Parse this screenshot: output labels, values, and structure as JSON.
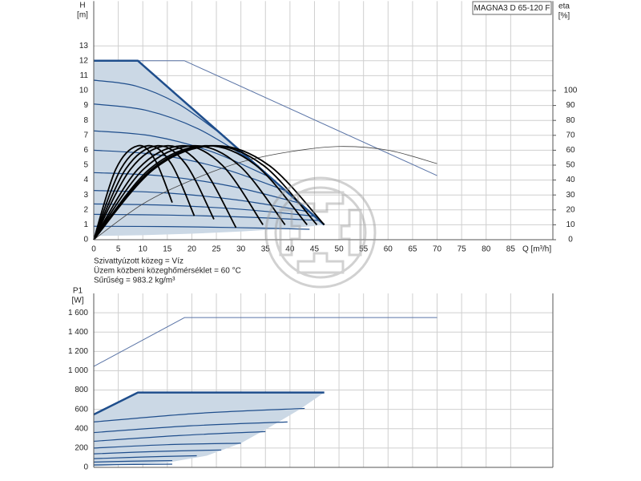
{
  "chart_data": [
    {
      "type": "line",
      "title": "MAGNA3 D 65-120 F",
      "ylabel": [
        "H",
        "[m]"
      ],
      "y2label": [
        "eta",
        "[%]"
      ],
      "xlabel": "Q [m³/h]",
      "annotations": [
        "Szivattyúzott közeg = Víz",
        "Üzem közbeni közeghőmérséklet = 60 °C",
        "Sűrűség = 983.2 kg/m³"
      ],
      "xlim": [
        0,
        93.6
      ],
      "xticks": [
        0,
        5,
        10,
        15,
        20,
        25,
        30,
        35,
        40,
        45,
        50,
        55,
        60,
        65,
        70,
        75,
        80,
        85
      ],
      "ylim": [
        0,
        16
      ],
      "yticks": [
        0,
        1,
        2,
        3,
        4,
        5,
        6,
        7,
        8,
        9,
        10,
        11,
        12,
        13
      ],
      "y2lim": [
        0,
        160
      ],
      "y2ticks": [
        0,
        10,
        20,
        30,
        40,
        50,
        60,
        70,
        80,
        90,
        100
      ],
      "grid": true,
      "series": [
        {
          "color": "#cbd8e5",
          "fill": true,
          "x": [
            0,
            9,
            47,
            40,
            30,
            20,
            10,
            0
          ],
          "values": [
            12,
            12,
            1.0,
            0.75,
            0.55,
            0.4,
            0.3,
            0.25
          ]
        },
        {
          "color": "#5a74a6",
          "width": 1,
          "x": [
            0,
            18.5,
            70
          ],
          "values": [
            12,
            12,
            4.3
          ]
        },
        {
          "color": "#1f4e8c",
          "width": 2.5,
          "x": [
            0,
            9,
            47
          ],
          "values": [
            12,
            12,
            1.0
          ]
        },
        {
          "color": "#1f4e8c",
          "width": 1.2,
          "smooth": true,
          "x": [
            0,
            8.67,
            17.33,
            26
          ],
          "values": [
            10.7,
            10.3,
            9.09,
            7.08
          ]
        },
        {
          "color": "#1f4e8c",
          "width": 1.2,
          "smooth": true,
          "x": [
            0,
            10.67,
            21.33,
            32
          ],
          "values": [
            9.1,
            8.68,
            7.43,
            5.34
          ]
        },
        {
          "color": "#1f4e8c",
          "width": 1.2,
          "smooth": true,
          "x": [
            0,
            12,
            24,
            36
          ],
          "values": [
            7.3,
            6.95,
            5.91,
            4.18
          ]
        },
        {
          "color": "#1f4e8c",
          "width": 1.2,
          "smooth": true,
          "x": [
            0,
            13,
            26,
            39
          ],
          "values": [
            6.0,
            5.7,
            4.8,
            3.3
          ]
        },
        {
          "color": "#1f4e8c",
          "width": 1.2,
          "smooth": true,
          "x": [
            0,
            14,
            28,
            42
          ],
          "values": [
            4.5,
            4.27,
            3.59,
            2.45
          ]
        },
        {
          "color": "#1f4e8c",
          "width": 1.2,
          "smooth": true,
          "x": [
            0,
            14.67,
            29.33,
            44
          ],
          "values": [
            3.3,
            3.14,
            2.66,
            1.87
          ]
        },
        {
          "color": "#1f4e8c",
          "width": 1.2,
          "smooth": true,
          "x": [
            0,
            15,
            30,
            45
          ],
          "values": [
            2.4,
            2.31,
            2.04,
            1.58
          ]
        },
        {
          "color": "#1f4e8c",
          "width": 1.2,
          "smooth": true,
          "x": [
            0,
            15.33,
            30.67,
            46
          ],
          "values": [
            1.7,
            1.65,
            1.52,
            1.29
          ]
        },
        {
          "color": "#1f4e8c",
          "width": 1.2,
          "smooth": true,
          "x": [
            0,
            14.67,
            29.33,
            44
          ],
          "values": [
            0.9,
            0.88,
            0.81,
            0.7
          ]
        },
        {
          "color": "#444444",
          "width": 0.8,
          "smooth": true,
          "axis": "y2",
          "x": [
            0,
            10,
            20,
            30,
            40,
            50,
            60,
            70
          ],
          "values": [
            0,
            24,
            40,
            52,
            59,
            62.5,
            60,
            51
          ]
        },
        {
          "color": "#000000",
          "width": 1.8,
          "smooth": true,
          "axis": "y2",
          "x": [
            0,
            4.5,
            9,
            12.5,
            16
          ],
          "values": [
            0,
            47.3,
            63,
            53.5,
            24.9
          ]
        },
        {
          "color": "#000000",
          "width": 1.8,
          "smooth": true,
          "axis": "y2",
          "x": [
            0,
            5.5,
            11,
            15.75,
            20.5
          ],
          "values": [
            0,
            47.3,
            63,
            51.2,
            16.0
          ]
        },
        {
          "color": "#000000",
          "width": 1.8,
          "smooth": true,
          "axis": "y2",
          "x": [
            0,
            6.5,
            13,
            18.75,
            24.5
          ],
          "values": [
            0,
            47.3,
            63,
            50.7,
            13.7
          ]
        },
        {
          "color": "#000000",
          "width": 1.8,
          "smooth": true,
          "axis": "y2",
          "x": [
            0,
            7.5,
            15,
            22,
            29
          ],
          "values": [
            0,
            47.3,
            63,
            49.3,
            8.1
          ]
        },
        {
          "color": "#000000",
          "width": 1.8,
          "smooth": true,
          "axis": "y2",
          "x": [
            0,
            9,
            18,
            26.25,
            34.5
          ],
          "values": [
            0,
            47.3,
            63,
            49.8,
            10.0
          ]
        },
        {
          "color": "#000000",
          "width": 1.8,
          "smooth": true,
          "axis": "y2",
          "x": [
            0,
            10.15,
            20.3,
            29.65,
            39
          ],
          "values": [
            0,
            47.3,
            63,
            49.8,
            10.0
          ]
        },
        {
          "color": "#000000",
          "width": 1.8,
          "smooth": true,
          "axis": "y2",
          "x": [
            0,
            11.35,
            22.7,
            33.1,
            43.5
          ],
          "values": [
            0,
            47.3,
            63,
            49.8,
            10.0
          ]
        },
        {
          "color": "#000000",
          "width": 1.8,
          "smooth": true,
          "axis": "y2",
          "x": [
            0,
            11.85,
            23.7,
            34.6,
            45.5
          ],
          "values": [
            0,
            47.3,
            63,
            49.8,
            10.0
          ]
        },
        {
          "color": "#000000",
          "width": 1.8,
          "smooth": true,
          "axis": "y2",
          "x": [
            0,
            12.25,
            24.5,
            35.75,
            47
          ],
          "values": [
            0,
            47.3,
            63,
            49.8,
            10.0
          ]
        }
      ]
    },
    {
      "type": "line",
      "ylabel": [
        "P1",
        "[W]"
      ],
      "xlim": [
        0,
        93.6
      ],
      "ylim": [
        0,
        1800
      ],
      "yticks": [
        0,
        200,
        400,
        600,
        800,
        {
          "value": 1000,
          "label": "1 000"
        },
        {
          "value": 1200,
          "label": "1 200"
        },
        {
          "value": 1400,
          "label": "1 400"
        },
        {
          "value": 1600,
          "label": "1 600"
        }
      ],
      "grid": true,
      "series": [
        {
          "color": "#cbd8e5",
          "fill": true,
          "x": [
            0,
            9,
            47,
            42,
            36,
            30,
            23,
            15,
            0
          ],
          "values": [
            547,
            775,
            775,
            600,
            420,
            250,
            120,
            50,
            10
          ]
        },
        {
          "color": "#5a74a6",
          "width": 1,
          "x": [
            0,
            18.5,
            70
          ],
          "values": [
            1045,
            1550,
            1550
          ]
        },
        {
          "color": "#1f4e8c",
          "width": 2.5,
          "x": [
            0,
            9,
            47
          ],
          "values": [
            547,
            775,
            775
          ]
        },
        {
          "color": "#1f4e8c",
          "width": 1.2,
          "smooth": true,
          "x": [
            0,
            21.5,
            43
          ],
          "values": [
            470,
            560,
            610
          ]
        },
        {
          "color": "#1f4e8c",
          "width": 1.2,
          "smooth": true,
          "x": [
            0,
            19.75,
            39.5
          ],
          "values": [
            360,
            430,
            470
          ]
        },
        {
          "color": "#1f4e8c",
          "width": 1.2,
          "smooth": true,
          "x": [
            0,
            17.5,
            35
          ],
          "values": [
            270,
            330,
            370
          ]
        },
        {
          "color": "#1f4e8c",
          "width": 1.2,
          "smooth": true,
          "x": [
            0,
            15,
            30
          ],
          "values": [
            200,
            235,
            250
          ]
        },
        {
          "color": "#1f4e8c",
          "width": 1.2,
          "smooth": true,
          "x": [
            0,
            13,
            26
          ],
          "values": [
            140,
            165,
            180
          ]
        },
        {
          "color": "#1f4e8c",
          "width": 1.2,
          "smooth": true,
          "x": [
            0,
            10.5,
            21
          ],
          "values": [
            90,
            108,
            120
          ]
        },
        {
          "color": "#1f4e8c",
          "width": 1.2,
          "smooth": true,
          "x": [
            0,
            8,
            16
          ],
          "values": [
            55,
            64,
            70
          ]
        },
        {
          "color": "#1f4e8c",
          "width": 1.2,
          "smooth": true,
          "x": [
            0,
            8,
            16
          ],
          "values": [
            25,
            30,
            33
          ]
        }
      ]
    }
  ]
}
